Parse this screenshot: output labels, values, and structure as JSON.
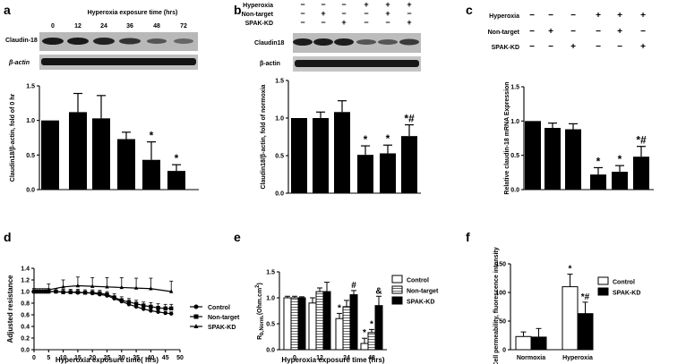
{
  "panels": {
    "a": {
      "label": "a",
      "blot_header": "Hyperoxia exposure time (hrs)",
      "times": [
        "0",
        "12",
        "24",
        "36",
        "48",
        "72"
      ],
      "band_labels": [
        "Claudin-18",
        "β-actin"
      ]
    },
    "b": {
      "label": "b",
      "conditions": [
        {
          "name": "Hyperoxia",
          "marks": [
            "−",
            "−",
            "−",
            "+",
            "+",
            "+"
          ]
        },
        {
          "name": "Non-target",
          "marks": [
            "−",
            "+",
            "−",
            "−",
            "+",
            "−"
          ]
        },
        {
          "name": "SPAK-KD",
          "marks": [
            "−",
            "−",
            "+",
            "−",
            "−",
            "+"
          ]
        }
      ],
      "band_labels": [
        "Claudin18",
        "β-actin"
      ]
    },
    "c": {
      "label": "c",
      "conditions": [
        {
          "name": "Hyperoxia",
          "marks": [
            "−",
            "−",
            "−",
            "+",
            "+",
            "+"
          ]
        },
        {
          "name": "Non-target",
          "marks": [
            "−",
            "+",
            "−",
            "−",
            "+",
            "−"
          ]
        },
        {
          "name": "SPAK-KD",
          "marks": [
            "−",
            "−",
            "+",
            "−",
            "−",
            "+"
          ]
        }
      ]
    },
    "d": {
      "label": "d"
    },
    "e": {
      "label": "e"
    },
    "f": {
      "label": "f"
    }
  },
  "chart_data": [
    {
      "id": "a",
      "type": "bar",
      "ylabel": "Claudin18/β-actin, fold of 0 hr",
      "ylim": [
        0,
        1.5
      ],
      "yticks": [
        "0.0",
        "0.5",
        "1.0",
        "1.5"
      ],
      "values": [
        1.0,
        1.12,
        1.03,
        0.73,
        0.43,
        0.27
      ],
      "errors": [
        0.0,
        0.27,
        0.33,
        0.1,
        0.26,
        0.09
      ],
      "annotations": [
        "",
        "",
        "",
        "",
        "*",
        "*"
      ],
      "color": "#000000"
    },
    {
      "id": "b",
      "type": "bar",
      "ylabel": "Claudin18/β-actin, fold of normoxia",
      "ylim": [
        0,
        1.5
      ],
      "yticks": [
        "0.0",
        "0.5",
        "1.0",
        "1.5"
      ],
      "values": [
        1.0,
        1.0,
        1.08,
        0.51,
        0.53,
        0.76
      ],
      "errors": [
        0.0,
        0.08,
        0.15,
        0.12,
        0.11,
        0.15
      ],
      "annotations": [
        "",
        "",
        "",
        "*",
        "*",
        "*#"
      ],
      "color": "#000000"
    },
    {
      "id": "c",
      "type": "bar",
      "ylabel": "Relative claudin-18 mRNA Expression",
      "ylim": [
        0,
        1.5
      ],
      "yticks": [
        "0.0",
        "0.5",
        "1.0",
        "1.5"
      ],
      "values": [
        1.0,
        0.9,
        0.88,
        0.22,
        0.26,
        0.48
      ],
      "errors": [
        0.0,
        0.07,
        0.08,
        0.1,
        0.09,
        0.15
      ],
      "annotations": [
        "",
        "",
        "",
        "*",
        "*",
        "*#"
      ],
      "color": "#000000"
    },
    {
      "id": "d",
      "type": "line",
      "xlabel": "Hyperoxia exposure time( hrs)",
      "ylabel": "Adjusted resistance",
      "xlim": [
        0,
        50
      ],
      "ylim": [
        0.0,
        1.4
      ],
      "xticks": [
        "0",
        "5",
        "10",
        "15",
        "20",
        "25",
        "30",
        "35",
        "40",
        "45",
        "50"
      ],
      "yticks": [
        "0.0",
        "0.2",
        "0.4",
        "0.6",
        "0.8",
        "1.0",
        "1.2",
        "1.4"
      ],
      "legend_position": "right",
      "series": [
        {
          "name": "Control",
          "marker": "circle",
          "x": [
            0,
            1,
            2,
            3,
            4,
            5,
            7.5,
            10,
            12.5,
            15,
            17.5,
            20,
            22.5,
            25,
            27.5,
            30,
            32.5,
            35,
            37.5,
            40,
            42.5,
            45,
            47
          ],
          "y": [
            1.0,
            1.0,
            1.0,
            1.0,
            1.0,
            1.0,
            1.0,
            0.99,
            0.99,
            0.98,
            0.98,
            0.97,
            0.95,
            0.93,
            0.88,
            0.83,
            0.78,
            0.74,
            0.7,
            0.67,
            0.65,
            0.63,
            0.62
          ],
          "err": [
            0.02,
            0.02,
            0.02,
            0.02,
            0.02,
            0.02,
            0.02,
            0.02,
            0.02,
            0.02,
            0.02,
            0.02,
            0.02,
            0.02,
            0.03,
            0.03,
            0.03,
            0.03,
            0.03,
            0.03,
            0.03,
            0.03,
            0.03
          ]
        },
        {
          "name": "Non-target",
          "marker": "square",
          "x": [
            0,
            1,
            2,
            3,
            4,
            5,
            7.5,
            10,
            12.5,
            15,
            17.5,
            20,
            22.5,
            25,
            27.5,
            30,
            32.5,
            35,
            37.5,
            40,
            42.5,
            45,
            47
          ],
          "y": [
            1.0,
            1.0,
            1.0,
            1.0,
            1.0,
            1.0,
            1.0,
            0.99,
            0.99,
            0.99,
            0.98,
            0.98,
            0.97,
            0.95,
            0.9,
            0.85,
            0.82,
            0.79,
            0.76,
            0.74,
            0.72,
            0.71,
            0.71
          ],
          "err": [
            0.05,
            0.05,
            0.05,
            0.05,
            0.05,
            0.05,
            0.05,
            0.05,
            0.05,
            0.05,
            0.05,
            0.05,
            0.05,
            0.05,
            0.06,
            0.06,
            0.06,
            0.06,
            0.06,
            0.07,
            0.07,
            0.07,
            0.07
          ]
        },
        {
          "name": "SPAK-KD",
          "marker": "triangle",
          "x": [
            0,
            5,
            10,
            15,
            20,
            25,
            30,
            35,
            40,
            47
          ],
          "y": [
            1.0,
            1.03,
            1.08,
            1.1,
            1.09,
            1.08,
            1.07,
            1.06,
            1.05,
            1.0
          ],
          "err": [
            0.05,
            0.1,
            0.12,
            0.15,
            0.15,
            0.16,
            0.17,
            0.17,
            0.18,
            0.18
          ]
        }
      ]
    },
    {
      "id": "e",
      "type": "bar",
      "xlabel": "Hyperoxia exposure time (hrs)",
      "ylabel": "R",
      "ylabel_sub": "b,Norm.",
      "ylabel_unit": "(Ohm.cm",
      "ylabel_sup": "2",
      "ylabel_close": ")",
      "ylim": [
        0.0,
        1.5
      ],
      "yticks": [
        "0.0",
        "0.5",
        "1.0",
        "1.5"
      ],
      "categories": [
        "0",
        "12",
        "24",
        "48"
      ],
      "legend_position": "right",
      "series": [
        {
          "name": "Control",
          "fill": "white",
          "values": [
            1.0,
            0.9,
            0.6,
            0.12
          ],
          "errors": [
            0.03,
            0.1,
            0.1,
            0.1
          ]
        },
        {
          "name": "Non-target",
          "fill": "hatch",
          "values": [
            1.0,
            1.12,
            0.83,
            0.33
          ],
          "errors": [
            0.03,
            0.07,
            0.12,
            0.06
          ]
        },
        {
          "name": "SPAK-KD",
          "fill": "black",
          "values": [
            1.0,
            1.12,
            1.06,
            0.85
          ],
          "errors": [
            0.02,
            0.18,
            0.08,
            0.18
          ]
        }
      ],
      "annotations": [
        {
          "group": 2,
          "series": 0,
          "text": "*"
        },
        {
          "group": 2,
          "series": 2,
          "text": "#"
        },
        {
          "group": 3,
          "series": 0,
          "text": "*"
        },
        {
          "group": 3,
          "series": 1,
          "text": "*"
        },
        {
          "group": 3,
          "series": 2,
          "text": "&"
        }
      ]
    },
    {
      "id": "f",
      "type": "bar",
      "ylabel": "Cell permeability, fluorescence intensity",
      "ylim": [
        0,
        150
      ],
      "yticks": [
        "0",
        "50",
        "100",
        "150"
      ],
      "categories": [
        "Normoxia",
        "Hyperoxia"
      ],
      "legend_position": "right",
      "series": [
        {
          "name": "Control",
          "fill": "white",
          "values": [
            23,
            110
          ],
          "errors": [
            8,
            22
          ]
        },
        {
          "name": "SPAK-KD",
          "fill": "black",
          "values": [
            22,
            63
          ],
          "errors": [
            15,
            20
          ]
        }
      ],
      "annotations": [
        {
          "group": 1,
          "series": 0,
          "text": "*"
        },
        {
          "group": 1,
          "series": 1,
          "text": "*#"
        }
      ]
    }
  ]
}
